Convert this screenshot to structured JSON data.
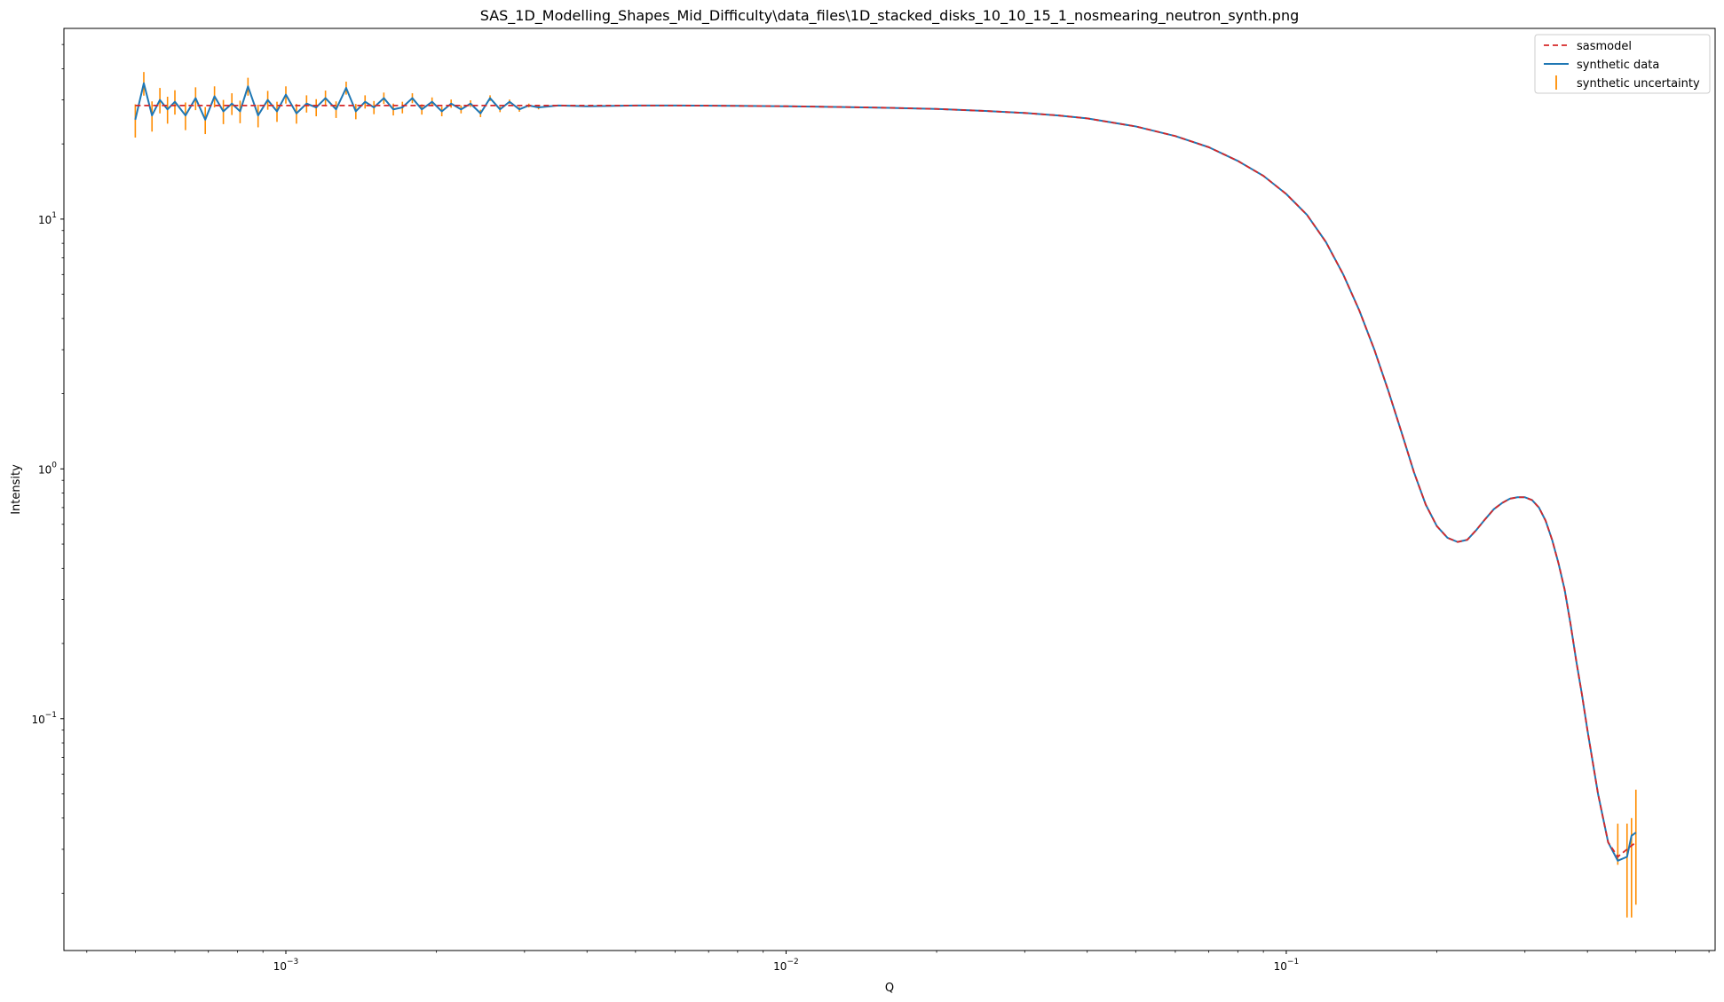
{
  "chart_data": {
    "type": "line",
    "title": "SAS_1D_Modelling_Shapes_Mid_Difficulty\\data_files\\1D_stacked_disks_10_10_15_1_nosmearing_neutron_synth.png",
    "xlabel": "Q",
    "ylabel": "Intensity",
    "x_scale": "log",
    "y_scale": "log",
    "xlim": [
      0.00036,
      0.72
    ],
    "ylim": [
      0.0118,
      58
    ],
    "grid": false,
    "legend_position": "top-right",
    "x_ticks": [
      {
        "base": "10",
        "exp": "−3",
        "value": 0.001
      },
      {
        "base": "10",
        "exp": "−2",
        "value": 0.01
      },
      {
        "base": "10",
        "exp": "−1",
        "value": 0.1
      }
    ],
    "y_ticks": [
      {
        "base": "10",
        "exp": "−1",
        "value": 0.1
      },
      {
        "base": "10",
        "exp": "0",
        "value": 1
      },
      {
        "base": "10",
        "exp": "1",
        "value": 10
      }
    ],
    "series": [
      {
        "name": "sasmodel",
        "style": "dashed",
        "color": "#d62728",
        "x": [
          0.0005,
          0.001,
          0.002,
          0.004,
          0.006,
          0.008,
          0.01,
          0.013,
          0.016,
          0.02,
          0.025,
          0.03,
          0.035,
          0.04,
          0.05,
          0.06,
          0.07,
          0.08,
          0.09,
          0.1,
          0.11,
          0.12,
          0.13,
          0.14,
          0.15,
          0.16,
          0.17,
          0.18,
          0.19,
          0.2,
          0.21,
          0.22,
          0.23,
          0.24,
          0.25,
          0.26,
          0.27,
          0.28,
          0.29,
          0.3,
          0.31,
          0.32,
          0.33,
          0.34,
          0.35,
          0.36,
          0.37,
          0.38,
          0.39,
          0.4,
          0.42,
          0.44,
          0.46,
          0.48,
          0.5
        ],
        "y": [
          28.5,
          28.5,
          28.5,
          28.5,
          28.5,
          28.4,
          28.3,
          28.1,
          27.9,
          27.6,
          27.1,
          26.6,
          26.0,
          25.3,
          23.5,
          21.5,
          19.4,
          17.1,
          14.9,
          12.6,
          10.4,
          8.1,
          6.0,
          4.3,
          3.0,
          2.05,
          1.4,
          0.97,
          0.72,
          0.59,
          0.53,
          0.51,
          0.52,
          0.57,
          0.63,
          0.69,
          0.73,
          0.76,
          0.77,
          0.77,
          0.75,
          0.7,
          0.62,
          0.52,
          0.42,
          0.33,
          0.24,
          0.17,
          0.125,
          0.09,
          0.05,
          0.032,
          0.028,
          0.03,
          0.032
        ]
      },
      {
        "name": "synthetic data",
        "style": "solid",
        "color": "#1f77b4",
        "x": [
          0.0005,
          0.00052,
          0.00054,
          0.00056,
          0.00058,
          0.0006,
          0.00063,
          0.00066,
          0.00069,
          0.00072,
          0.00075,
          0.00078,
          0.00081,
          0.00084,
          0.00088,
          0.00092,
          0.00096,
          0.001,
          0.00105,
          0.0011,
          0.00115,
          0.0012,
          0.00126,
          0.00132,
          0.00138,
          0.00144,
          0.0015,
          0.00157,
          0.00164,
          0.00171,
          0.00179,
          0.00187,
          0.00196,
          0.00205,
          0.00214,
          0.00224,
          0.00234,
          0.00245,
          0.00256,
          0.00268,
          0.0028,
          0.00293,
          0.00306,
          0.0032,
          0.0035,
          0.004,
          0.005,
          0.006,
          0.008,
          0.01,
          0.013,
          0.016,
          0.02,
          0.025,
          0.03,
          0.035,
          0.04,
          0.05,
          0.06,
          0.07,
          0.08,
          0.09,
          0.1,
          0.11,
          0.12,
          0.13,
          0.14,
          0.15,
          0.16,
          0.17,
          0.18,
          0.19,
          0.2,
          0.21,
          0.22,
          0.23,
          0.24,
          0.25,
          0.26,
          0.27,
          0.28,
          0.29,
          0.3,
          0.31,
          0.32,
          0.33,
          0.34,
          0.35,
          0.36,
          0.37,
          0.38,
          0.39,
          0.4,
          0.42,
          0.44,
          0.46,
          0.48,
          0.49,
          0.5
        ],
        "y": [
          25.0,
          35.0,
          26.0,
          30.0,
          27.5,
          29.5,
          26.0,
          30.5,
          25.0,
          31.0,
          27.0,
          29.0,
          27.0,
          34.0,
          26.0,
          30.0,
          27.0,
          31.5,
          26.5,
          29.0,
          28.0,
          30.5,
          27.5,
          33.5,
          27.0,
          29.5,
          28.0,
          30.5,
          27.5,
          28.0,
          30.5,
          27.5,
          29.5,
          27.0,
          29.0,
          27.5,
          29.0,
          26.5,
          30.5,
          27.5,
          29.5,
          27.5,
          28.5,
          28.0,
          28.5,
          28.3,
          28.5,
          28.5,
          28.4,
          28.3,
          28.1,
          27.9,
          27.6,
          27.1,
          26.6,
          26.0,
          25.3,
          23.5,
          21.5,
          19.4,
          17.1,
          14.9,
          12.6,
          10.4,
          8.1,
          6.0,
          4.3,
          3.0,
          2.05,
          1.4,
          0.97,
          0.72,
          0.59,
          0.53,
          0.51,
          0.52,
          0.57,
          0.63,
          0.69,
          0.73,
          0.76,
          0.77,
          0.77,
          0.75,
          0.7,
          0.62,
          0.52,
          0.42,
          0.33,
          0.24,
          0.17,
          0.125,
          0.09,
          0.05,
          0.032,
          0.027,
          0.028,
          0.034,
          0.035
        ]
      },
      {
        "name": "synthetic uncertainty",
        "style": "errorbar",
        "color": "#ff8c00",
        "x": [
          0.0005,
          0.00052,
          0.00054,
          0.00056,
          0.00058,
          0.0006,
          0.00063,
          0.00066,
          0.00069,
          0.00072,
          0.00075,
          0.00078,
          0.00081,
          0.00084,
          0.00088,
          0.00092,
          0.00096,
          0.001,
          0.00105,
          0.0011,
          0.00115,
          0.0012,
          0.00126,
          0.00132,
          0.00138,
          0.00144,
          0.0015,
          0.00157,
          0.00164,
          0.00171,
          0.00179,
          0.00187,
          0.00196,
          0.00205,
          0.00214,
          0.00224,
          0.00234,
          0.00245,
          0.00256,
          0.00268,
          0.0028,
          0.00293,
          0.00306,
          0.0032,
          0.46,
          0.48,
          0.49,
          0.5
        ],
        "y": [
          25.0,
          35.0,
          26.0,
          30.0,
          27.5,
          29.5,
          26.0,
          30.5,
          25.0,
          31.0,
          27.0,
          29.0,
          27.0,
          34.0,
          26.0,
          30.0,
          27.0,
          31.5,
          26.5,
          29.0,
          28.0,
          30.5,
          27.5,
          33.5,
          27.0,
          29.5,
          28.0,
          30.5,
          27.5,
          28.0,
          30.5,
          27.5,
          29.5,
          27.0,
          29.0,
          27.5,
          29.0,
          26.5,
          30.5,
          27.5,
          29.5,
          27.5,
          28.5,
          28.0,
          0.032,
          0.027,
          0.028,
          0.035
        ],
        "err": [
          3.8,
          3.8,
          3.6,
          3.5,
          3.4,
          3.3,
          3.3,
          3.2,
          3.1,
          3.0,
          3.0,
          2.9,
          2.8,
          2.8,
          2.7,
          2.6,
          2.5,
          2.5,
          2.4,
          2.3,
          2.2,
          2.2,
          2.1,
          2.0,
          1.9,
          1.8,
          1.7,
          1.6,
          1.5,
          1.5,
          1.4,
          1.3,
          1.2,
          1.2,
          1.1,
          1.0,
          0.9,
          0.9,
          0.8,
          0.7,
          0.6,
          0.6,
          0.5,
          0.5,
          0.006,
          0.011,
          0.012,
          0.017
        ]
      }
    ]
  }
}
